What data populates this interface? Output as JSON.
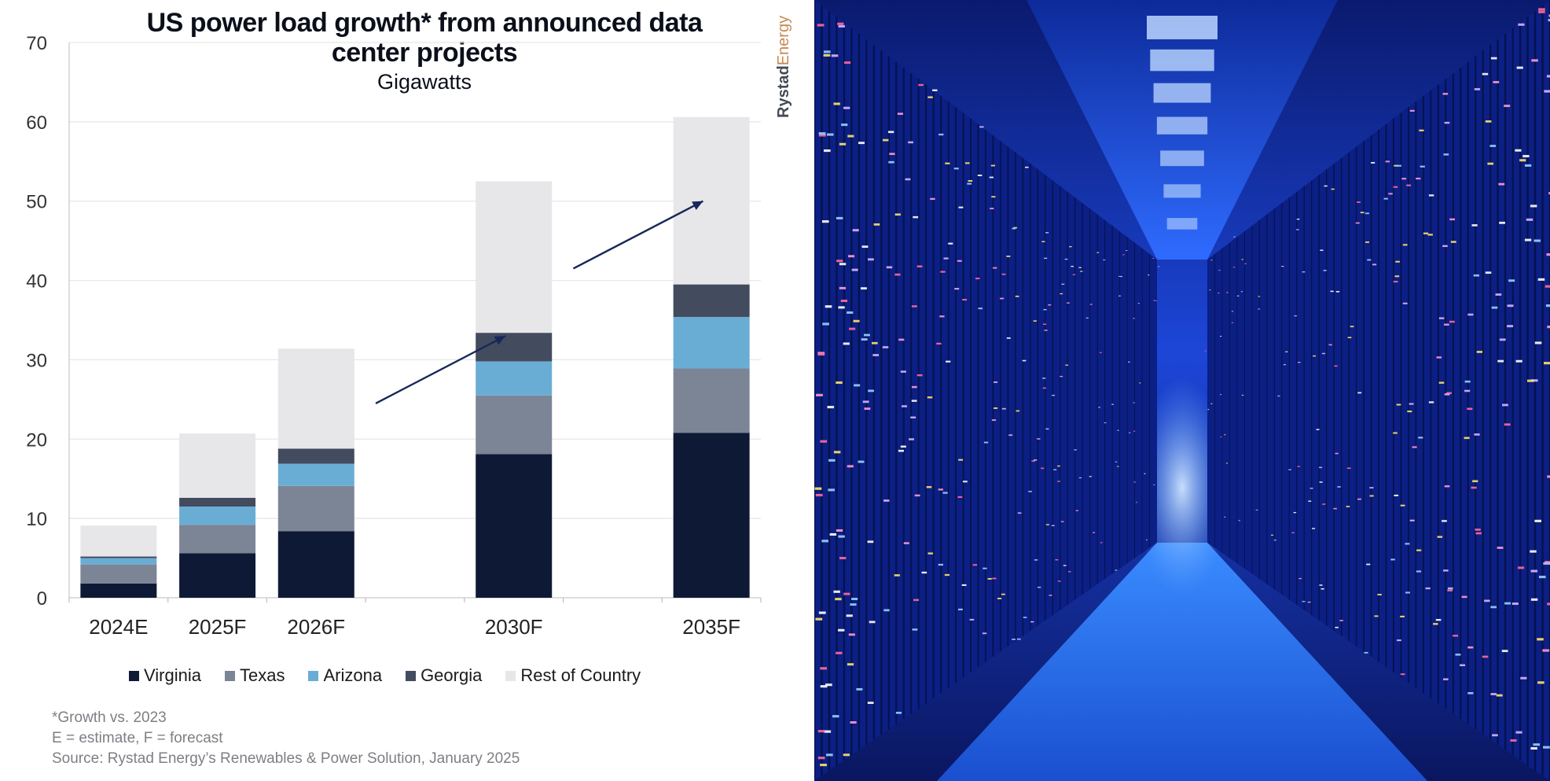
{
  "chart_data": {
    "type": "bar",
    "stacked": true,
    "title": "US power load growth* from announced data center projects",
    "subtitle": "Gigawatts",
    "xlabel": "",
    "ylabel": "",
    "ylim": [
      0,
      70
    ],
    "yticks": [
      0,
      10,
      20,
      30,
      40,
      50,
      60,
      70
    ],
    "grid": true,
    "legend_position": "bottom",
    "categories": [
      "2024E",
      "2025F",
      "2026F",
      "2030F",
      "2035F"
    ],
    "x_slots": [
      0,
      1,
      2,
      4,
      6
    ],
    "slot_count": 7,
    "series": [
      {
        "name": "Virginia",
        "color": "#0e1a35",
        "values": [
          1.8,
          5.6,
          8.4,
          18.1,
          20.8
        ]
      },
      {
        "name": "Texas",
        "color": "#7b8596",
        "values": [
          2.4,
          3.6,
          5.7,
          7.4,
          8.1
        ]
      },
      {
        "name": "Arizona",
        "color": "#6aadd4",
        "values": [
          0.8,
          2.3,
          2.8,
          4.3,
          6.5
        ]
      },
      {
        "name": "Georgia",
        "color": "#434b5e",
        "values": [
          0.2,
          1.1,
          1.9,
          3.6,
          4.1
        ]
      },
      {
        "name": "Rest of Country",
        "color": "#e7e7e9",
        "values": [
          3.9,
          8.1,
          12.6,
          19.1,
          21.1
        ]
      }
    ],
    "annotations": [
      "growth-arrow",
      "growth-arrow"
    ],
    "footnotes": [
      "*Growth vs. 2023",
      "E = estimate, F = forecast",
      "Source: Rystad Energy’s Renewables & Power Solution, January 2025"
    ]
  },
  "brand": {
    "part1": "Rystad",
    "part2": "Energy"
  },
  "photo": {
    "subject": "data-center-server-aisle",
    "tint": "#1b4fff"
  }
}
